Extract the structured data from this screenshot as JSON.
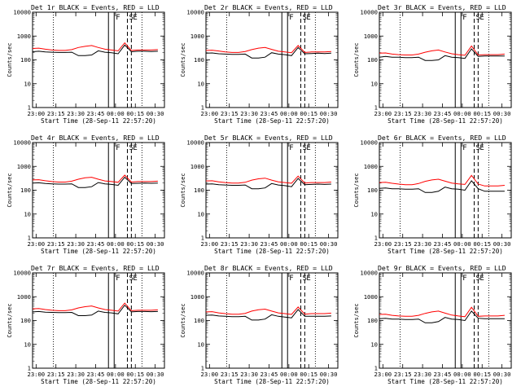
{
  "figure": {
    "panel_title_suffix": " BLACK = Events, RED = LLD",
    "xlabel": "Start Time (28-Sep-11 22:57:20)",
    "ylabel": "Counts/sec",
    "x_tick_labels": [
      "23:00",
      "23:15",
      "23:30",
      "23:45",
      "00:00",
      "00:15",
      "00:30"
    ],
    "y_tick_labels": [
      "1",
      "10",
      "100",
      "1000",
      "10000"
    ],
    "marker_labels": [
      "F",
      "S",
      "E"
    ],
    "colors": {
      "events": "#000000",
      "lld": "#ff0000",
      "background": "#ffffff"
    }
  },
  "chart_data": [
    {
      "type": "line",
      "title": "Det 1r",
      "xlabel": "Start Time (28-Sep-11 22:57:20)",
      "ylabel": "Counts/sec",
      "yscale": "log",
      "ylim": [
        1,
        10000
      ],
      "x": [
        "22:57:20",
        "23:02",
        "23:07",
        "23:12",
        "23:17",
        "23:22",
        "23:27",
        "23:32",
        "23:37",
        "23:42",
        "23:47",
        "23:52",
        "23:57",
        "00:02",
        "00:07",
        "00:12",
        "00:17",
        "00:22",
        "00:27",
        "00:32"
      ],
      "series": [
        {
          "name": "Events",
          "values": [
            220,
            230,
            215,
            210,
            205,
            205,
            210,
            150,
            150,
            160,
            240,
            210,
            200,
            180,
            420,
            220,
            230,
            230,
            225,
            230
          ]
        },
        {
          "name": "LLD",
          "values": [
            300,
            310,
            280,
            260,
            250,
            250,
            270,
            330,
            370,
            400,
            330,
            280,
            260,
            240,
            520,
            250,
            260,
            260,
            260,
            270
          ]
        }
      ],
      "vertical_markers": [
        {
          "label": "F",
          "time": "23:59"
        },
        {
          "label": "S",
          "time": "00:09"
        },
        {
          "label": "E",
          "time": "00:12"
        }
      ]
    },
    {
      "type": "line",
      "title": "Det 2r",
      "xlabel": "Start Time (28-Sep-11 22:57:20)",
      "ylabel": "Counts/sec",
      "yscale": "log",
      "ylim": [
        1,
        10000
      ],
      "x": [
        "22:57:20",
        "23:02",
        "23:07",
        "23:12",
        "23:17",
        "23:22",
        "23:27",
        "23:32",
        "23:37",
        "23:42",
        "23:47",
        "23:52",
        "23:57",
        "00:02",
        "00:07",
        "00:12",
        "00:17",
        "00:22",
        "00:27",
        "00:32"
      ],
      "series": [
        {
          "name": "Events",
          "values": [
            190,
            195,
            180,
            175,
            170,
            170,
            175,
            120,
            120,
            130,
            200,
            175,
            165,
            150,
            330,
            180,
            185,
            190,
            185,
            190
          ]
        },
        {
          "name": "LLD",
          "values": [
            250,
            255,
            235,
            215,
            205,
            205,
            225,
            270,
            310,
            330,
            275,
            230,
            215,
            200,
            400,
            205,
            215,
            215,
            215,
            225
          ]
        }
      ],
      "vertical_markers": [
        {
          "label": "F",
          "time": "23:59"
        },
        {
          "label": "S",
          "time": "00:09"
        },
        {
          "label": "E",
          "time": "00:12"
        }
      ]
    },
    {
      "type": "line",
      "title": "Det 3r",
      "xlabel": "Start Time (28-Sep-11 22:57:20)",
      "ylabel": "Counts/sec",
      "yscale": "log",
      "ylim": [
        1,
        10000
      ],
      "x": [
        "22:57:20",
        "23:02",
        "23:07",
        "23:12",
        "23:17",
        "23:22",
        "23:27",
        "23:32",
        "23:37",
        "23:42",
        "23:47",
        "23:52",
        "23:57",
        "00:02",
        "00:07",
        "00:12",
        "00:17",
        "00:22",
        "00:27",
        "00:32"
      ],
      "series": [
        {
          "name": "Events",
          "values": [
            130,
            140,
            130,
            130,
            125,
            125,
            130,
            95,
            95,
            100,
            150,
            130,
            125,
            115,
            290,
            140,
            145,
            145,
            145,
            145
          ]
        },
        {
          "name": "LLD",
          "values": [
            190,
            195,
            175,
            165,
            160,
            160,
            175,
            210,
            240,
            260,
            215,
            180,
            165,
            155,
            380,
            160,
            165,
            165,
            165,
            175
          ]
        }
      ],
      "vertical_markers": [
        {
          "label": "F",
          "time": "23:59"
        },
        {
          "label": "S",
          "time": "00:09"
        },
        {
          "label": "E",
          "time": "00:12"
        }
      ]
    },
    {
      "type": "line",
      "title": "Det 4r",
      "xlabel": "Start Time (28-Sep-11 22:57:20)",
      "ylabel": "Counts/sec",
      "yscale": "log",
      "ylim": [
        1,
        10000
      ],
      "x": [
        "22:57:20",
        "23:02",
        "23:07",
        "23:12",
        "23:17",
        "23:22",
        "23:27",
        "23:32",
        "23:37",
        "23:42",
        "23:47",
        "23:52",
        "23:57",
        "00:02",
        "00:07",
        "00:12",
        "00:17",
        "00:22",
        "00:27",
        "00:32"
      ],
      "series": [
        {
          "name": "Events",
          "values": [
            200,
            205,
            190,
            185,
            180,
            180,
            185,
            130,
            130,
            140,
            210,
            185,
            175,
            160,
            350,
            190,
            195,
            200,
            195,
            200
          ]
        },
        {
          "name": "LLD",
          "values": [
            270,
            275,
            250,
            230,
            220,
            220,
            240,
            290,
            330,
            350,
            290,
            245,
            230,
            215,
            430,
            220,
            230,
            230,
            230,
            240
          ]
        }
      ],
      "vertical_markers": [
        {
          "label": "F",
          "time": "23:59"
        },
        {
          "label": "S",
          "time": "00:09"
        },
        {
          "label": "E",
          "time": "00:12"
        }
      ]
    },
    {
      "type": "line",
      "title": "Det 5r",
      "xlabel": "Start Time (28-Sep-11 22:57:20)",
      "ylabel": "Counts/sec",
      "yscale": "log",
      "ylim": [
        1,
        10000
      ],
      "x": [
        "22:57:20",
        "23:02",
        "23:07",
        "23:12",
        "23:17",
        "23:22",
        "23:27",
        "23:32",
        "23:37",
        "23:42",
        "23:47",
        "23:52",
        "23:57",
        "00:02",
        "00:07",
        "00:12",
        "00:17",
        "00:22",
        "00:27",
        "00:32"
      ],
      "series": [
        {
          "name": "Events",
          "values": [
            180,
            185,
            170,
            165,
            160,
            160,
            165,
            115,
            115,
            125,
            190,
            165,
            155,
            140,
            310,
            170,
            175,
            180,
            175,
            180
          ]
        },
        {
          "name": "LLD",
          "values": [
            245,
            250,
            225,
            210,
            200,
            200,
            215,
            265,
            300,
            320,
            265,
            225,
            210,
            195,
            390,
            200,
            210,
            210,
            210,
            220
          ]
        }
      ],
      "vertical_markers": [
        {
          "label": "F",
          "time": "23:59"
        },
        {
          "label": "S",
          "time": "00:09"
        },
        {
          "label": "E",
          "time": "00:12"
        }
      ]
    },
    {
      "type": "line",
      "title": "Det 6r",
      "xlabel": "Start Time (28-Sep-11 22:57:20)",
      "ylabel": "Counts/sec",
      "yscale": "log",
      "ylim": [
        1,
        10000
      ],
      "x": [
        "22:57:20",
        "23:02",
        "23:07",
        "23:12",
        "23:17",
        "23:22",
        "23:27",
        "23:32",
        "23:37",
        "23:42",
        "23:47",
        "23:52",
        "23:57",
        "00:02",
        "00:07",
        "00:12",
        "00:17",
        "00:22",
        "00:27",
        "00:32"
      ],
      "series": [
        {
          "name": "Events",
          "values": [
            120,
            125,
            115,
            115,
            110,
            110,
            115,
            80,
            80,
            90,
            135,
            115,
            110,
            100,
            250,
            115,
            90,
            90,
            90,
            90
          ]
        },
        {
          "name": "LLD",
          "values": [
            210,
            215,
            195,
            180,
            170,
            170,
            190,
            235,
            270,
            290,
            240,
            200,
            185,
            175,
            420,
            180,
            150,
            150,
            150,
            160
          ]
        }
      ],
      "vertical_markers": [
        {
          "label": "F",
          "time": "23:59"
        },
        {
          "label": "S",
          "time": "00:09"
        },
        {
          "label": "E",
          "time": "00:12"
        }
      ]
    },
    {
      "type": "line",
      "title": "Det 7r",
      "xlabel": "Start Time (28-Sep-11 22:57:20)",
      "ylabel": "Counts/sec",
      "yscale": "log",
      "ylim": [
        1,
        10000
      ],
      "x": [
        "22:57:20",
        "23:02",
        "23:07",
        "23:12",
        "23:17",
        "23:22",
        "23:27",
        "23:32",
        "23:37",
        "23:42",
        "23:47",
        "23:52",
        "23:57",
        "00:02",
        "00:07",
        "00:12",
        "00:17",
        "00:22",
        "00:27",
        "00:32"
      ],
      "series": [
        {
          "name": "Events",
          "values": [
            230,
            240,
            225,
            220,
            215,
            215,
            220,
            160,
            160,
            170,
            250,
            220,
            210,
            190,
            440,
            230,
            240,
            240,
            235,
            240
          ]
        },
        {
          "name": "LLD",
          "values": [
            310,
            320,
            290,
            270,
            260,
            260,
            280,
            340,
            380,
            410,
            340,
            290,
            270,
            250,
            540,
            260,
            270,
            270,
            270,
            280
          ]
        }
      ],
      "vertical_markers": [
        {
          "label": "F",
          "time": "23:59"
        },
        {
          "label": "S",
          "time": "00:09"
        },
        {
          "label": "E",
          "time": "00:12"
        }
      ]
    },
    {
      "type": "line",
      "title": "Det 8r",
      "xlabel": "Start Time (28-Sep-11 22:57:20)",
      "ylabel": "Counts/sec",
      "yscale": "log",
      "ylim": [
        1,
        10000
      ],
      "x": [
        "22:57:20",
        "23:02",
        "23:07",
        "23:12",
        "23:17",
        "23:22",
        "23:27",
        "23:32",
        "23:37",
        "23:42",
        "23:47",
        "23:52",
        "23:57",
        "00:02",
        "00:07",
        "00:12",
        "00:17",
        "00:22",
        "00:27",
        "00:32"
      ],
      "series": [
        {
          "name": "Events",
          "values": [
            165,
            170,
            155,
            150,
            145,
            145,
            150,
            105,
            105,
            115,
            175,
            150,
            140,
            130,
            290,
            150,
            150,
            150,
            150,
            155
          ]
        },
        {
          "name": "LLD",
          "values": [
            230,
            235,
            210,
            195,
            185,
            185,
            200,
            250,
            285,
            300,
            250,
            210,
            195,
            180,
            370,
            185,
            195,
            195,
            195,
            205
          ]
        }
      ],
      "vertical_markers": [
        {
          "label": "F",
          "time": "23:59"
        },
        {
          "label": "S",
          "time": "00:09"
        },
        {
          "label": "E",
          "time": "00:12"
        }
      ]
    },
    {
      "type": "line",
      "title": "Det 9r",
      "xlabel": "Start Time (28-Sep-11 22:57:20)",
      "ylabel": "Counts/sec",
      "yscale": "log",
      "ylim": [
        1,
        10000
      ],
      "x": [
        "22:57:20",
        "23:02",
        "23:07",
        "23:12",
        "23:17",
        "23:22",
        "23:27",
        "23:32",
        "23:37",
        "23:42",
        "23:47",
        "23:52",
        "23:57",
        "00:02",
        "00:07",
        "00:12",
        "00:17",
        "00:22",
        "00:27",
        "00:32"
      ],
      "series": [
        {
          "name": "Events",
          "values": [
            120,
            125,
            115,
            115,
            110,
            110,
            115,
            80,
            80,
            90,
            135,
            115,
            110,
            100,
            250,
            125,
            120,
            120,
            120,
            120
          ]
        },
        {
          "name": "LLD",
          "values": [
            180,
            185,
            165,
            155,
            150,
            150,
            165,
            200,
            230,
            250,
            205,
            170,
            155,
            145,
            360,
            150,
            155,
            155,
            155,
            165
          ]
        }
      ],
      "vertical_markers": [
        {
          "label": "F",
          "time": "23:59"
        },
        {
          "label": "S",
          "time": "00:09"
        },
        {
          "label": "E",
          "time": "00:12"
        }
      ]
    }
  ]
}
